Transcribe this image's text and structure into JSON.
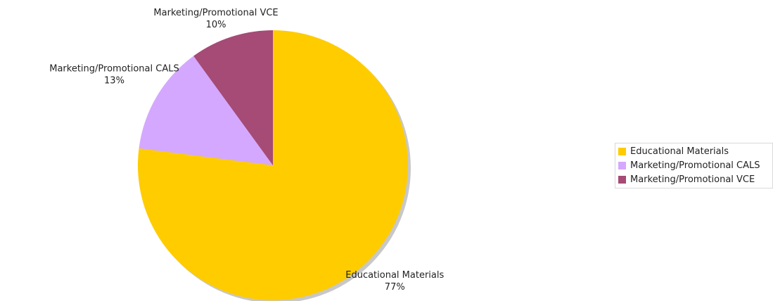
{
  "chart_data": {
    "type": "pie",
    "title": "",
    "legend_position": "right",
    "slices": [
      {
        "label": "Educational Materials",
        "value": 77,
        "value_label": "77%",
        "color": "#ffcc00"
      },
      {
        "label": "Marketing/Promotional CALS",
        "value": 13,
        "value_label": "13%",
        "color": "#d5a8ff"
      },
      {
        "label": "Marketing/Promotional VCE",
        "value": 10,
        "value_label": "10%",
        "color": "#a64a76"
      }
    ]
  },
  "colors": {
    "shadow": "#c8c8c8",
    "legend_border": "#d9d9d9"
  }
}
